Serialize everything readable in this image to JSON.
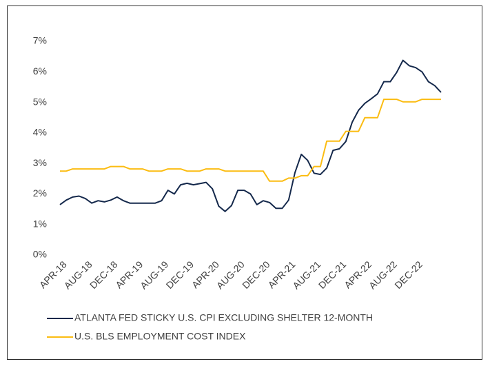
{
  "chart_data": {
    "type": "line",
    "categories": [
      "APR-18",
      null,
      null,
      null,
      "AUG-18",
      null,
      null,
      null,
      "DEC-18",
      null,
      null,
      null,
      "APR-19",
      null,
      null,
      null,
      "AUG-19",
      null,
      null,
      null,
      "DEC-19",
      null,
      null,
      null,
      "APR-20",
      null,
      null,
      null,
      "AUG-20",
      null,
      null,
      null,
      "DEC-20",
      null,
      null,
      null,
      "APR-21",
      null,
      null,
      null,
      "AUG-21",
      null,
      null,
      null,
      "DEC-21",
      null,
      null,
      null,
      "APR-22",
      null,
      null,
      null,
      "AUG-22",
      null,
      null,
      null,
      "DEC-22",
      null,
      null,
      null,
      null
    ],
    "series": [
      {
        "name": "ATLANTA FED STICKY U.S. CPI EXCLUDING SHELTER 12-MONTH",
        "color": "#14284b",
        "values": [
          1.65,
          1.8,
          1.9,
          1.93,
          1.85,
          1.7,
          1.78,
          1.74,
          1.8,
          1.9,
          1.78,
          1.7,
          1.7,
          1.7,
          1.7,
          1.7,
          1.78,
          2.12,
          2.0,
          2.3,
          2.35,
          2.3,
          2.34,
          2.38,
          2.17,
          1.6,
          1.43,
          1.62,
          2.12,
          2.12,
          2.0,
          1.65,
          1.78,
          1.72,
          1.53,
          1.53,
          1.8,
          2.7,
          3.3,
          3.1,
          2.68,
          2.64,
          2.85,
          3.43,
          3.48,
          3.72,
          4.35,
          4.74,
          4.97,
          5.12,
          5.28,
          5.68,
          5.68,
          5.98,
          6.38,
          6.2,
          6.14,
          6.0,
          5.68,
          5.55,
          5.33
        ]
      },
      {
        "name": "U.S. BLS EMPLOYMENT COST INDEX",
        "color": "#fbbc11",
        "values": [
          2.75,
          2.75,
          2.82,
          2.82,
          2.82,
          2.82,
          2.82,
          2.82,
          2.9,
          2.9,
          2.9,
          2.82,
          2.82,
          2.82,
          2.75,
          2.75,
          2.75,
          2.82,
          2.82,
          2.82,
          2.75,
          2.75,
          2.75,
          2.82,
          2.82,
          2.82,
          2.75,
          2.75,
          2.75,
          2.75,
          2.75,
          2.75,
          2.75,
          2.42,
          2.42,
          2.42,
          2.52,
          2.52,
          2.6,
          2.6,
          2.9,
          2.9,
          3.73,
          3.73,
          3.73,
          4.05,
          4.05,
          4.05,
          4.5,
          4.5,
          4.5,
          5.1,
          5.1,
          5.1,
          5.02,
          5.02,
          5.02,
          5.1,
          5.1,
          5.1,
          5.1
        ]
      }
    ],
    "ylim": [
      0,
      7
    ],
    "yticks": [
      {
        "value": 0,
        "label": "0%"
      },
      {
        "value": 1,
        "label": "1%"
      },
      {
        "value": 2,
        "label": "2%"
      },
      {
        "value": 3,
        "label": "3%"
      },
      {
        "value": 4,
        "label": "4%"
      },
      {
        "value": 5,
        "label": "5%"
      },
      {
        "value": 6,
        "label": "6%"
      },
      {
        "value": 7,
        "label": "7%"
      }
    ],
    "grid": false
  }
}
